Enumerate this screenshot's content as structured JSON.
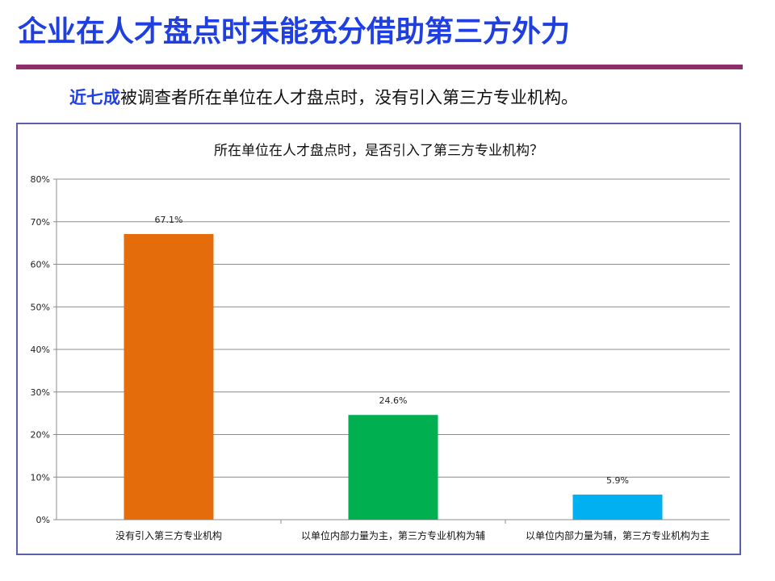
{
  "slide": {
    "title": "企业在人才盘点时未能充分借助第三方外力",
    "title_color": "#1f3fe0",
    "rule_color": "#8e2f6b",
    "subtitle_highlight": "近七成",
    "subtitle_rest": "被调查者所在单位在人才盘点时，没有引入第三方专业机构。",
    "highlight_color": "#1f3fe0"
  },
  "chart_data": {
    "type": "bar",
    "title": "所在单位在人才盘点时，是否引入了第三方专业机构？",
    "categories": [
      "没有引入第三方专业机构",
      "以单位内部力量为主，第三方专业机构为辅",
      "以单位内部力量为辅，第三方专业机构为主"
    ],
    "values": [
      67.1,
      24.6,
      5.9
    ],
    "data_labels": [
      "67.1%",
      "24.6%",
      "5.9%"
    ],
    "bar_colors": [
      "#e46c0a",
      "#00b050",
      "#00b0f0"
    ],
    "ylim": [
      0,
      80
    ],
    "y_ticks": [
      "0%",
      "10%",
      "20%",
      "30%",
      "40%",
      "50%",
      "60%",
      "70%",
      "80%"
    ],
    "y_tick_values": [
      0,
      10,
      20,
      30,
      40,
      50,
      60,
      70,
      80
    ],
    "grid": true,
    "legend": "none"
  }
}
